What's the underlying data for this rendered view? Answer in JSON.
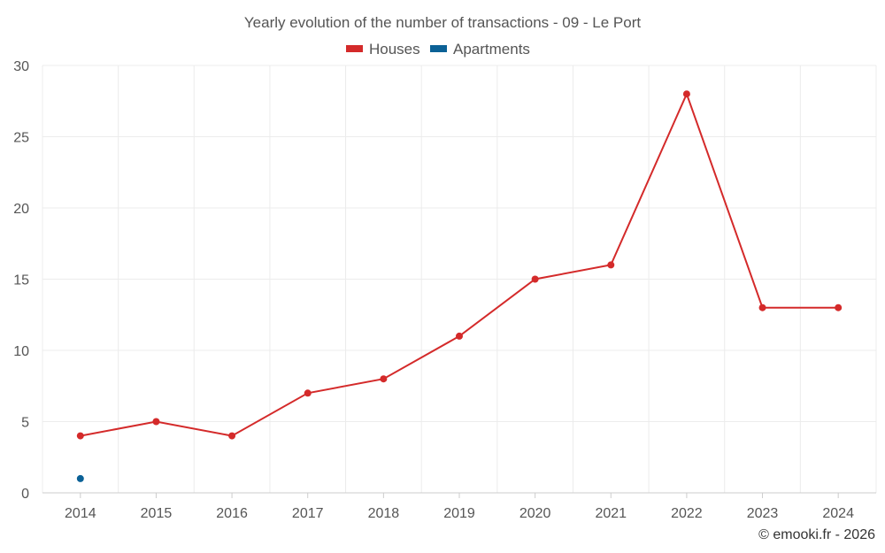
{
  "chart_data": {
    "type": "line",
    "title": "Yearly evolution of the number of transactions - 09 - Le Port",
    "categories": [
      "2014",
      "2015",
      "2016",
      "2017",
      "2018",
      "2019",
      "2020",
      "2021",
      "2022",
      "2023",
      "2024"
    ],
    "y_ticks": [
      "0",
      "5",
      "10",
      "15",
      "20",
      "25",
      "30"
    ],
    "ylim": [
      0,
      30
    ],
    "series": [
      {
        "name": "Houses",
        "color": "#d42a2a",
        "values": [
          4,
          5,
          4,
          7,
          8,
          11,
          15,
          16,
          28,
          13,
          13
        ]
      },
      {
        "name": "Apartments",
        "color": "#0b6196",
        "values": [
          1,
          null,
          null,
          null,
          null,
          null,
          null,
          null,
          null,
          null,
          null
        ]
      }
    ],
    "legend_position": "top-center",
    "credit": "© emooki.fr - 2026"
  }
}
